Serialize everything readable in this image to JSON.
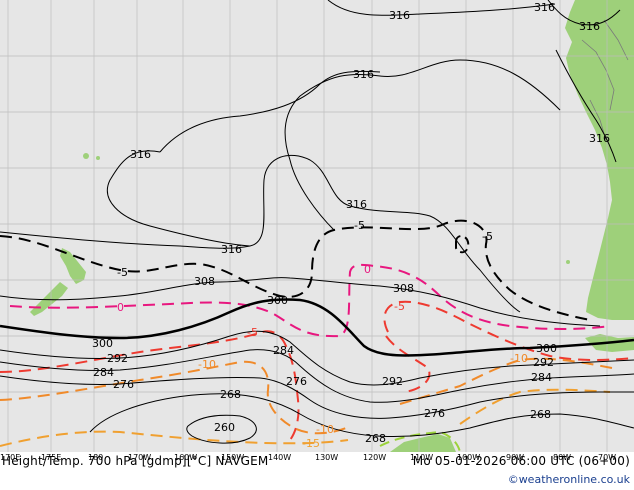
{
  "header": {
    "title": "Height/Temp. 700 hPa [gdmp][°C] NAVGEM",
    "valid_time": "Mo 05-01-2026 06:00 UTC (06+00)"
  },
  "footer": {
    "credit": "©weatheronline.co.uk"
  },
  "colors": {
    "sea": "#e6e6e6",
    "land": "#9ed07a",
    "grid": "#bdbdbd",
    "height_contour": "#000000",
    "temp_neg5": "#000000",
    "temp_0": "#e8177f",
    "temp_pos5": "#ee3a30",
    "temp_pos10": "#f08a2a",
    "temp_pos15": "#f0a030",
    "temp_pos20": "#9bd23a"
  },
  "longitude_ticks": [
    "170E",
    "175E",
    "180",
    "170W",
    "160W",
    "150W",
    "140W",
    "130W",
    "120W",
    "110W",
    "100W",
    "90W",
    "80W",
    "70W"
  ],
  "height_labels": [
    "316",
    "316",
    "316",
    "316",
    "316",
    "316",
    "316",
    "316",
    "308",
    "308",
    "300",
    "300",
    "300",
    "292",
    "292",
    "292",
    "284",
    "284",
    "284",
    "276",
    "276",
    "276",
    "268",
    "268",
    "268",
    "260"
  ],
  "temp_labels": [
    "-5",
    "-5",
    "-5",
    "0",
    "0",
    "-5",
    "-5",
    "-10",
    "-10",
    "-10",
    "-15"
  ]
}
